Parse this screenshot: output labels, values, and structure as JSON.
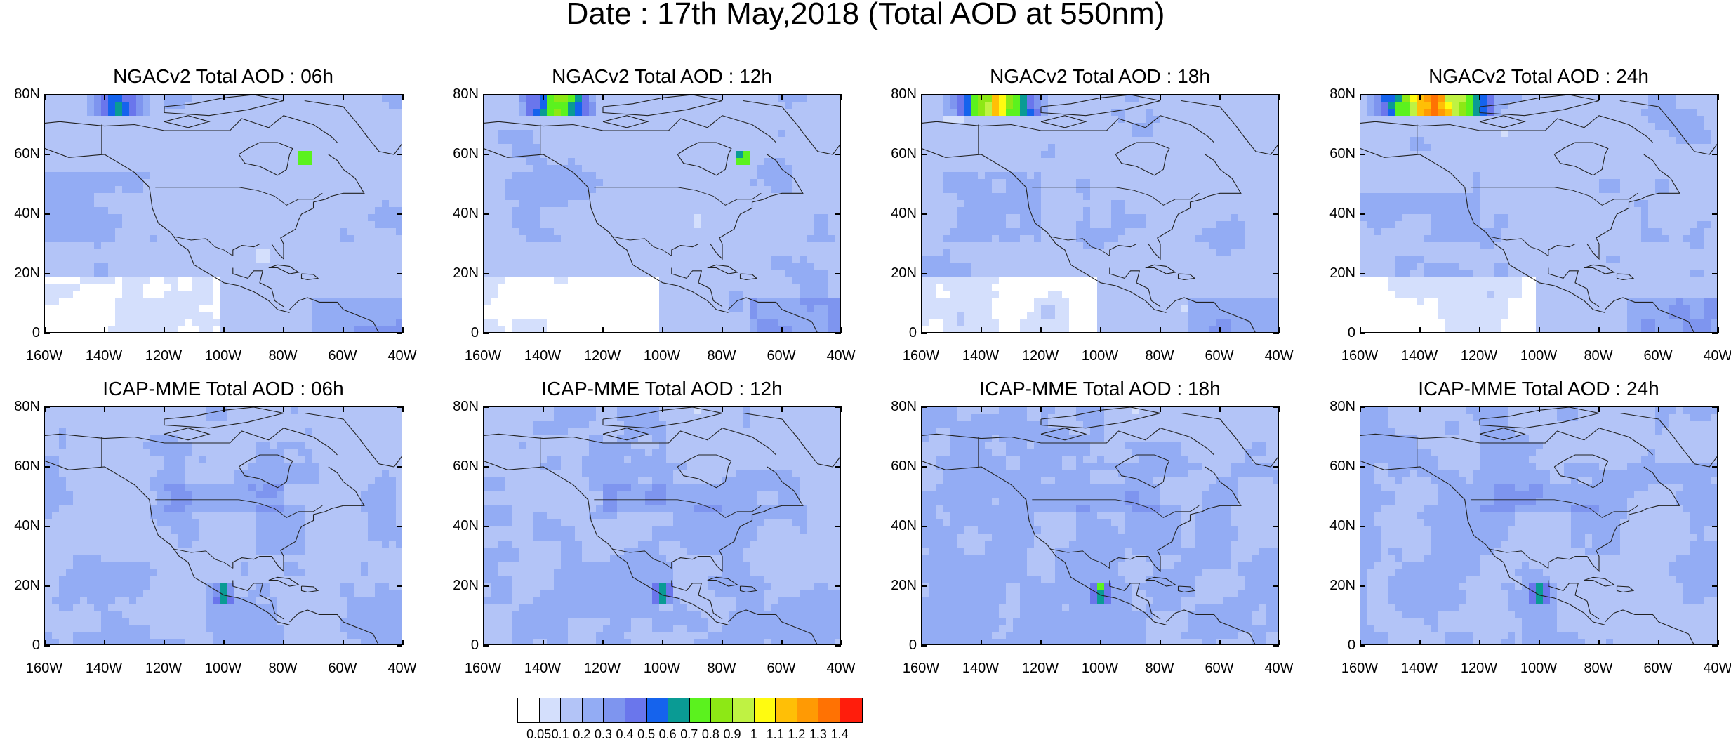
{
  "title": "Date : 17th May,2018 (Total AOD at 550nm)",
  "map_data": {
    "type": "heatmap-map-grid",
    "region": "North America",
    "lat_labels": [
      "80N",
      "60N",
      "40N",
      "20N",
      "0"
    ],
    "lon_labels": [
      "160W",
      "140W",
      "120W",
      "100W",
      "80W",
      "60W",
      "40W"
    ],
    "lat_range": [
      0,
      80
    ],
    "lon_range": [
      -160,
      -40
    ],
    "variable": "Total AOD at 550nm",
    "panels": [
      {
        "title": "NGACv2 Total AOD : 06h",
        "model": "NGACv2",
        "hour": "06h"
      },
      {
        "title": "NGACv2 Total AOD : 12h",
        "model": "NGACv2",
        "hour": "12h"
      },
      {
        "title": "NGACv2 Total AOD : 18h",
        "model": "NGACv2",
        "hour": "18h"
      },
      {
        "title": "NGACv2 Total AOD : 24h",
        "model": "NGACv2",
        "hour": "24h"
      },
      {
        "title": "ICAP-MME Total AOD : 06h",
        "model": "ICAP-MME",
        "hour": "06h"
      },
      {
        "title": "ICAP-MME Total AOD : 12h",
        "model": "ICAP-MME",
        "hour": "12h"
      },
      {
        "title": "ICAP-MME Total AOD : 18h",
        "model": "ICAP-MME",
        "hour": "18h"
      },
      {
        "title": "ICAP-MME Total AOD : 24h",
        "model": "ICAP-MME",
        "hour": "24h"
      }
    ],
    "colorbar": {
      "labels": [
        "0.05",
        "0.1",
        "0.2",
        "0.3",
        "0.4",
        "0.5",
        "0.6",
        "0.7",
        "0.8",
        "0.9",
        "1",
        "1.1",
        "1.2",
        "1.3",
        "1.4"
      ],
      "colors": [
        "#ffffff",
        "#d4dffc",
        "#b3c4f7",
        "#93acf4",
        "#7e95ef",
        "#6a76ec",
        "#1563ed",
        "#0a9b94",
        "#5bf21e",
        "#8de815",
        "#bff243",
        "#fffb10",
        "#ffbf06",
        "#ff9a04",
        "#ff7203",
        "#ff1d0c"
      ]
    }
  }
}
